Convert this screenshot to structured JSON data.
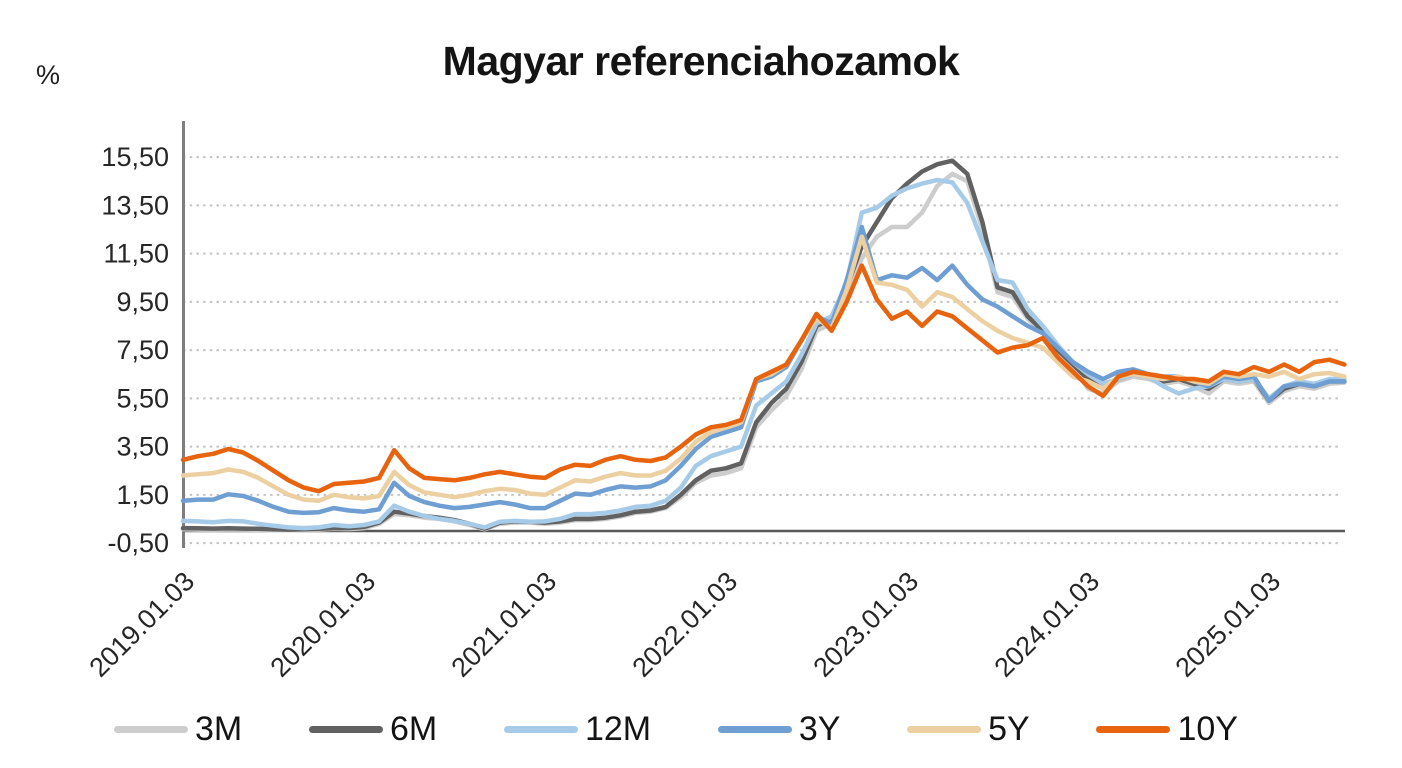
{
  "chart_data": {
    "type": "line",
    "title": "Magyar referenciahozamok",
    "y_axis": {
      "unit_label": "%",
      "range": [
        -0.5,
        16.3
      ],
      "gridlines": "dotted",
      "zero_line_value": 0,
      "ticks": [
        {
          "value": 15.5,
          "label": "15,50"
        },
        {
          "value": 13.5,
          "label": "13,50"
        },
        {
          "value": 11.5,
          "label": "11,50"
        },
        {
          "value": 9.5,
          "label": "9,50"
        },
        {
          "value": 7.5,
          "label": "7,50"
        },
        {
          "value": 5.5,
          "label": "5,50"
        },
        {
          "value": 3.5,
          "label": "3,50"
        },
        {
          "value": 1.5,
          "label": "1,50"
        },
        {
          "value": -0.5,
          "label": "-0,50"
        }
      ]
    },
    "x_axis": {
      "tick_labels": [
        "2019.01.03",
        "2020.01.03",
        "2021.01.03",
        "2022.01.03",
        "2023.01.03",
        "2024.01.03",
        "2025.01.03"
      ],
      "label_rotation_deg": -45,
      "x_start": "2019-01",
      "x_interval": "month",
      "points_per_series": 78,
      "x_end": "2025-06"
    },
    "legend": {
      "position": "bottom",
      "entries": [
        "3M",
        "6M",
        "12M",
        "3Y",
        "5Y",
        "10Y"
      ]
    },
    "axis_colors": {
      "axis_line": "#7f7f7f",
      "zero_line": "#595959",
      "gridline": "#c3c3c3",
      "text": "#262626"
    },
    "series": [
      {
        "name": "3M",
        "color": "#cdcdcd",
        "values": [
          0.07,
          0.06,
          0.05,
          0.06,
          0.06,
          0.05,
          0.03,
          0.03,
          0.04,
          0.06,
          0.09,
          0.08,
          0.12,
          0.3,
          0.7,
          0.65,
          0.55,
          0.5,
          0.4,
          0.25,
          0.07,
          0.3,
          0.35,
          0.35,
          0.3,
          0.35,
          0.45,
          0.45,
          0.5,
          0.6,
          0.75,
          0.8,
          0.95,
          1.4,
          2.0,
          2.3,
          2.4,
          2.6,
          4.3,
          5.0,
          5.6,
          6.7,
          8.3,
          8.6,
          9.9,
          11.3,
          12.2,
          12.6,
          12.6,
          13.2,
          14.3,
          14.8,
          14.5,
          12.5,
          9.9,
          9.7,
          8.8,
          8.2,
          7.4,
          6.8,
          5.9,
          5.7,
          6.2,
          6.4,
          6.3,
          6.1,
          6.2,
          6.0,
          5.7,
          6.2,
          6.1,
          6.2,
          5.3,
          5.8,
          6.0,
          5.9,
          6.1,
          6.15
        ]
      },
      {
        "name": "6M",
        "color": "#616161",
        "values": [
          0.12,
          0.11,
          0.1,
          0.11,
          0.1,
          0.09,
          0.07,
          0.06,
          0.07,
          0.09,
          0.12,
          0.12,
          0.17,
          0.35,
          0.8,
          0.72,
          0.62,
          0.55,
          0.45,
          0.3,
          0.1,
          0.35,
          0.4,
          0.38,
          0.35,
          0.4,
          0.5,
          0.5,
          0.55,
          0.65,
          0.8,
          0.85,
          1.0,
          1.5,
          2.1,
          2.5,
          2.6,
          2.8,
          4.5,
          5.3,
          5.9,
          7.0,
          8.5,
          8.8,
          10.1,
          11.8,
          12.8,
          13.8,
          14.4,
          14.9,
          15.2,
          15.35,
          14.8,
          12.8,
          10.1,
          9.9,
          8.9,
          8.3,
          7.5,
          6.9,
          6.3,
          6.0,
          6.3,
          6.5,
          6.4,
          6.2,
          6.3,
          6.1,
          5.9,
          6.3,
          6.2,
          6.3,
          5.4,
          5.9,
          6.1,
          6.0,
          6.2,
          6.2
        ]
      },
      {
        "name": "12M",
        "color": "#a6cbe9",
        "values": [
          0.42,
          0.4,
          0.36,
          0.42,
          0.4,
          0.3,
          0.22,
          0.15,
          0.12,
          0.15,
          0.25,
          0.2,
          0.25,
          0.4,
          1.05,
          0.8,
          0.62,
          0.5,
          0.42,
          0.3,
          0.15,
          0.38,
          0.42,
          0.38,
          0.4,
          0.5,
          0.7,
          0.7,
          0.75,
          0.85,
          1.0,
          1.05,
          1.25,
          1.8,
          2.7,
          3.1,
          3.3,
          3.5,
          5.2,
          5.7,
          6.2,
          7.3,
          8.6,
          8.9,
          10.3,
          13.2,
          13.4,
          13.9,
          14.2,
          14.4,
          14.55,
          14.45,
          13.6,
          12.0,
          10.4,
          10.3,
          9.2,
          8.5,
          7.7,
          7.0,
          6.5,
          6.1,
          6.3,
          6.5,
          6.4,
          6.0,
          5.7,
          5.9,
          6.0,
          6.3,
          6.2,
          6.3,
          5.5,
          6.0,
          6.2,
          6.1,
          6.3,
          6.3
        ]
      },
      {
        "name": "3Y",
        "color": "#6e9ed2",
        "values": [
          1.25,
          1.3,
          1.3,
          1.52,
          1.45,
          1.25,
          1.0,
          0.8,
          0.75,
          0.78,
          0.95,
          0.85,
          0.8,
          0.9,
          2.0,
          1.45,
          1.2,
          1.05,
          0.95,
          1.0,
          1.1,
          1.2,
          1.1,
          0.95,
          0.95,
          1.25,
          1.55,
          1.5,
          1.7,
          1.85,
          1.8,
          1.85,
          2.1,
          2.7,
          3.4,
          3.9,
          4.1,
          4.3,
          6.2,
          6.4,
          6.8,
          7.9,
          8.9,
          8.6,
          10.4,
          12.6,
          10.4,
          10.6,
          10.5,
          10.9,
          10.4,
          11.0,
          10.2,
          9.6,
          9.3,
          8.9,
          8.5,
          8.2,
          7.6,
          7.0,
          6.6,
          6.3,
          6.6,
          6.7,
          6.5,
          6.4,
          6.4,
          6.2,
          6.0,
          6.4,
          6.3,
          6.4,
          5.4,
          6.0,
          6.1,
          6.0,
          6.2,
          6.2
        ]
      },
      {
        "name": "5Y",
        "color": "#ecd0a2",
        "values": [
          2.3,
          2.35,
          2.4,
          2.55,
          2.45,
          2.2,
          1.85,
          1.5,
          1.3,
          1.25,
          1.5,
          1.4,
          1.35,
          1.45,
          2.45,
          1.9,
          1.6,
          1.5,
          1.4,
          1.5,
          1.65,
          1.75,
          1.7,
          1.55,
          1.5,
          1.8,
          2.1,
          2.05,
          2.25,
          2.4,
          2.3,
          2.3,
          2.5,
          3.0,
          3.7,
          4.1,
          4.3,
          4.5,
          6.3,
          6.5,
          6.9,
          7.9,
          8.8,
          8.4,
          10.0,
          12.2,
          10.3,
          10.2,
          10.0,
          9.3,
          9.9,
          9.7,
          9.2,
          8.7,
          8.3,
          8.0,
          7.8,
          7.6,
          7.0,
          6.4,
          6.2,
          5.9,
          6.4,
          6.5,
          6.4,
          6.3,
          6.4,
          6.2,
          6.1,
          6.5,
          6.4,
          6.5,
          6.4,
          6.6,
          6.3,
          6.5,
          6.55,
          6.4
        ]
      },
      {
        "name": "10Y",
        "color": "#e7630e",
        "values": [
          2.95,
          3.1,
          3.2,
          3.4,
          3.25,
          2.9,
          2.5,
          2.1,
          1.8,
          1.65,
          1.95,
          2.0,
          2.05,
          2.2,
          3.35,
          2.6,
          2.2,
          2.15,
          2.1,
          2.2,
          2.35,
          2.45,
          2.35,
          2.25,
          2.2,
          2.55,
          2.75,
          2.7,
          2.95,
          3.1,
          2.95,
          2.9,
          3.05,
          3.5,
          4.0,
          4.3,
          4.4,
          4.6,
          6.3,
          6.6,
          6.9,
          7.9,
          9.0,
          8.3,
          9.5,
          11.0,
          9.6,
          8.8,
          9.1,
          8.5,
          9.1,
          8.9,
          8.4,
          7.9,
          7.4,
          7.6,
          7.7,
          8.0,
          7.2,
          6.6,
          6.0,
          5.6,
          6.4,
          6.6,
          6.5,
          6.4,
          6.3,
          6.3,
          6.2,
          6.6,
          6.5,
          6.8,
          6.6,
          6.9,
          6.6,
          7.0,
          7.1,
          6.9
        ]
      }
    ]
  }
}
